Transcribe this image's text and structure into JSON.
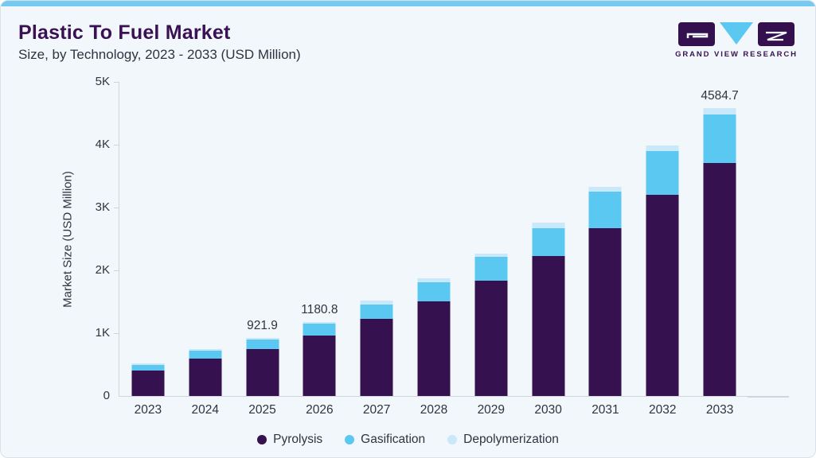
{
  "header": {
    "title": "Plastic To Fuel Market",
    "subtitle": "Size, by Technology, 2023 - 2033 (USD Million)",
    "brand_name": "GRAND VIEW RESEARCH"
  },
  "colors": {
    "card_bg": "#F1F7FA",
    "card_border": "#D9E2E8",
    "accent_top": "#76CAEF",
    "title": "#3A1254",
    "text": "#2E3440",
    "axis_line": "#CED5DB",
    "logo_purple": "#34104E",
    "logo_blue": "#5BC8F2"
  },
  "chart_data": {
    "type": "bar",
    "stacked": true,
    "title": "Plastic To Fuel Market Size, by Technology, 2023 - 2033 (USD Million)",
    "xlabel": "",
    "ylabel": "Market Size (USD Million)",
    "ylim": [
      0,
      5000
    ],
    "grid": false,
    "legend_position": "bottom",
    "yticks": [
      {
        "value": 0,
        "label": "0"
      },
      {
        "value": 1000,
        "label": "1K"
      },
      {
        "value": 2000,
        "label": "2K"
      },
      {
        "value": 3000,
        "label": "3K"
      },
      {
        "value": 4000,
        "label": "4K"
      },
      {
        "value": 5000,
        "label": "5K"
      }
    ],
    "categories": [
      "2023",
      "2024",
      "2025",
      "2026",
      "2027",
      "2028",
      "2029",
      "2030",
      "2031",
      "2032",
      "2033"
    ],
    "series": [
      {
        "name": "Pyrolysis",
        "color": "#351150",
        "values": [
          405,
          600,
          747,
          966,
          1222,
          1505,
          1835,
          2223,
          2671,
          3206,
          3710
        ]
      },
      {
        "name": "Gasification",
        "color": "#5BC8F2",
        "values": [
          88,
          122,
          150,
          190,
          238,
          308,
          380,
          447,
          578,
          688,
          774
        ]
      },
      {
        "name": "Depolymerization",
        "color": "#C9E8FA",
        "values": [
          22,
          25,
          24.9,
          24.8,
          55,
          55,
          55,
          84,
          84,
          93,
          100.7
        ]
      }
    ],
    "totals": [
      515,
      747,
      921.9,
      1180.8,
      1515,
      1868,
      2270,
      2754,
      3333,
      3987,
      4584.7
    ],
    "data_labels": [
      null,
      null,
      "921.9",
      "1180.8",
      null,
      null,
      null,
      null,
      null,
      null,
      "4584.7"
    ]
  }
}
